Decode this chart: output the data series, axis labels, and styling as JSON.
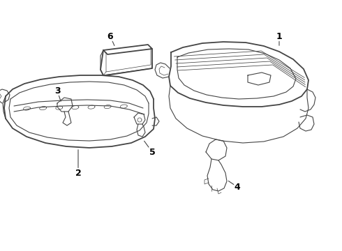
{
  "bg_color": "#ffffff",
  "line_color": "#444444",
  "label_color": "#000000",
  "figsize": [
    4.9,
    3.6
  ],
  "dpi": 100
}
